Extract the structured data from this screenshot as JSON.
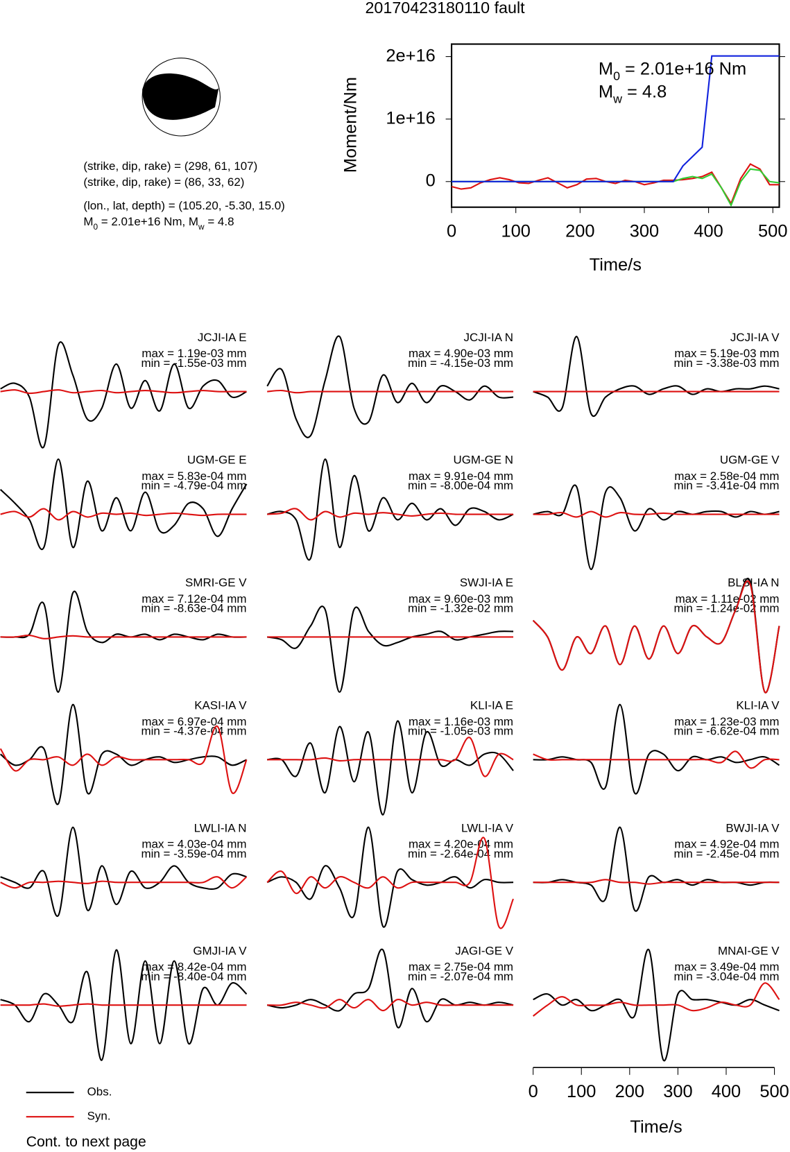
{
  "title": "20170423180110 fault",
  "focal": {
    "lines": [
      "(strike, dip, rake) = (298, 61, 107)",
      "(strike, dip, rake) = (86, 33, 62)",
      "(lon., lat, depth) = (105.20, -5.30, 15.0)"
    ],
    "moment_line": [
      "M",
      "0",
      " = 2.01e+16 Nm, M",
      "w",
      " = 4.8"
    ]
  },
  "chart_data": [
    {
      "type": "line",
      "ylabel": "Moment/Nm",
      "xlabel": "Time/s",
      "annotations": [
        [
          "M",
          "0",
          " = 2.01e+16 Nm"
        ],
        [
          "M",
          "w",
          " = 4.8"
        ]
      ],
      "xlim": [
        0,
        510
      ],
      "xticks": [
        0,
        100,
        200,
        300,
        400,
        500
      ],
      "ylim": [
        -4100000000000000.0,
        2.2e+16
      ],
      "yticks": [
        {
          "value": 0,
          "label": "0"
        },
        {
          "value": 1e+16,
          "label": "1e+16"
        },
        {
          "value": 2e+16,
          "label": "2e+16"
        }
      ],
      "x": [
        0,
        15,
        30,
        45,
        60,
        75,
        90,
        105,
        120,
        135,
        150,
        165,
        180,
        195,
        210,
        225,
        240,
        255,
        270,
        285,
        300,
        315,
        330,
        345,
        360,
        375,
        390,
        405,
        420,
        435,
        450,
        465,
        480,
        495,
        510
      ],
      "series": [
        {
          "color": "#dd1111",
          "values": [
            -800000000000000.0,
            -1200000000000000.0,
            -1000000000000000.0,
            -200000000000000.0,
            300000000000000.0,
            600000000000000.0,
            300000000000000.0,
            -200000000000000.0,
            -300000000000000.0,
            200000000000000.0,
            600000000000000.0,
            -200000000000000.0,
            -1000000000000000.0,
            -500000000000000.0,
            400000000000000.0,
            500000000000000.0,
            0,
            -300000000000000.0,
            200000000000000.0,
            0,
            -500000000000000.0,
            -200000000000000.0,
            200000000000000.0,
            200000000000000.0,
            300000000000000.0,
            500000000000000.0,
            800000000000000.0,
            1500000000000000.0,
            -1000000000000000.0,
            -3500000000000000.0,
            500000000000000.0,
            2800000000000000.0,
            2000000000000000.0,
            -500000000000000.0,
            -500000000000000.0
          ]
        },
        {
          "color": "#33cc33",
          "values": [
            0,
            0,
            0,
            0,
            0,
            0,
            0,
            0,
            0,
            0,
            0,
            0,
            0,
            0,
            0,
            0,
            0,
            0,
            0,
            0,
            0,
            0,
            0,
            0,
            500000000000000.0,
            800000000000000.0,
            500000000000000.0,
            1200000000000000.0,
            -1000000000000000.0,
            -3800000000000000.0,
            0,
            2000000000000000.0,
            1800000000000000.0,
            0,
            -200000000000000.0
          ]
        },
        {
          "color": "#1122dd",
          "values": [
            0,
            0,
            0,
            0,
            0,
            0,
            0,
            0,
            0,
            0,
            0,
            0,
            0,
            0,
            0,
            0,
            0,
            0,
            0,
            0,
            0,
            0,
            0,
            0,
            2500000000000000.0,
            4000000000000000.0,
            5500000000000000.0,
            2.01e+16,
            2.01e+16,
            2.01e+16,
            2.01e+16,
            2.01e+16,
            2.01e+16,
            2.01e+16,
            2.01e+16
          ]
        }
      ]
    },
    {
      "type": "waveform",
      "xlabel": "Time/s",
      "xlim": [
        0,
        510
      ],
      "xticks": [
        0,
        100,
        200,
        300,
        400,
        500
      ],
      "ylim": [
        -1,
        1
      ],
      "x": [
        0,
        30,
        60,
        90,
        120,
        150,
        180,
        210,
        240,
        270,
        300,
        330,
        360,
        390,
        420,
        450,
        480,
        510
      ],
      "series": [
        {
          "name": "Obs.",
          "color": "#000000"
        },
        {
          "name": "Syn.",
          "color": "#dd1111"
        }
      ],
      "panels": [
        {
          "name": "JCJI-IA E",
          "max": "max = 1.19e-03 mm",
          "min": "min = -1.55e-03 mm",
          "obs": [
            0.05,
            0.15,
            -0.1,
            -1,
            0.85,
            0.3,
            -0.5,
            -0.3,
            0.5,
            -0.3,
            0.2,
            -0.35,
            0.5,
            -0.3,
            0.1,
            0.2,
            -0.1,
            0
          ],
          "syn": [
            0,
            0.03,
            -0.03,
            0,
            0.03,
            -0.02,
            0,
            0.02,
            -0.02,
            0,
            0.02,
            0,
            -0.02,
            0,
            0.02,
            0,
            0,
            0
          ]
        },
        {
          "name": "JCJI-IA N",
          "max": "max = 4.90e-03 mm",
          "min": "min = -4.15e-03 mm",
          "obs": [
            0.1,
            0.4,
            -0.5,
            -0.8,
            0.2,
            1,
            -0.3,
            -0.55,
            0.3,
            -0.2,
            0.15,
            -0.2,
            0.1,
            0,
            -0.15,
            0.1,
            -0.1,
            -0.1
          ],
          "syn": [
            0,
            0.02,
            -0.02,
            0,
            0,
            0,
            0,
            0,
            0,
            0,
            0,
            0,
            0,
            0,
            0,
            0,
            0,
            0
          ]
        },
        {
          "name": "JCJI-IA V",
          "max": "max = 5.19e-03 mm",
          "min": "min = -3.38e-03 mm",
          "obs": [
            0,
            -0.1,
            -0.3,
            1,
            -0.4,
            -0.1,
            0.05,
            0.1,
            -0.05,
            0.05,
            0.1,
            -0.05,
            0.05,
            0,
            0.05,
            0.05,
            0.1,
            0.05
          ],
          "syn": [
            0,
            0,
            0,
            0,
            0,
            0,
            0,
            0,
            0,
            0,
            0,
            0,
            0,
            0,
            0,
            0,
            0,
            0
          ]
        },
        {
          "name": "UGM-GE E",
          "max": "max = 5.83e-04 mm",
          "min": "min = -4.79e-04 mm",
          "obs": [
            0.45,
            0.2,
            -0.1,
            -0.6,
            1,
            -0.6,
            0.6,
            -0.3,
            0.3,
            -0.3,
            0.4,
            -0.3,
            -0.2,
            0.2,
            0.1,
            -0.4,
            0.1,
            0.55
          ],
          "syn": [
            0,
            0.05,
            -0.05,
            0.1,
            -0.1,
            0.05,
            -0.05,
            0.02,
            0,
            0.02,
            -0.02,
            0,
            0.02,
            0,
            -0.02,
            0,
            0,
            0
          ]
        },
        {
          "name": "UGM-GE N",
          "max": "max = 9.91e-04 mm",
          "min": "min = -8.00e-04 mm",
          "obs": [
            0,
            0.05,
            -0.1,
            -0.8,
            1,
            -0.6,
            0.7,
            -0.3,
            0.3,
            -0.1,
            0.2,
            -0.1,
            0.1,
            -0.2,
            0.1,
            0.05,
            -0.1,
            0
          ],
          "syn": [
            0,
            0.02,
            0.1,
            -0.1,
            0.05,
            -0.05,
            0.02,
            0,
            0.03,
            0,
            -0.03,
            0,
            0.02,
            0,
            0,
            0,
            0,
            0
          ]
        },
        {
          "name": "UGM-GE V",
          "max": "max = 2.58e-04 mm",
          "min": "min = -3.41e-04 mm",
          "obs": [
            0,
            0.05,
            0,
            0.5,
            -1,
            0.4,
            0.3,
            -0.3,
            0.1,
            -0.1,
            0.05,
            0,
            0.05,
            0.05,
            -0.05,
            0.05,
            0,
            0.05
          ],
          "syn": [
            0,
            0,
            0.03,
            -0.05,
            0.05,
            -0.05,
            0.03,
            0,
            0,
            0.02,
            0,
            0,
            0,
            0,
            0,
            0,
            0,
            0
          ]
        },
        {
          "name": "SMRI-GE V",
          "max": "max = 7.12e-04 mm",
          "min": "min = -8.63e-04 mm",
          "obs": [
            0,
            0,
            0.05,
            0.6,
            -1,
            0.8,
            0.1,
            -0.1,
            0.05,
            0,
            0.05,
            -0.05,
            0.05,
            0,
            -0.05,
            0.05,
            0,
            0
          ],
          "syn": [
            0,
            0,
            0.03,
            -0.03,
            0,
            0.02,
            0,
            0,
            0,
            0,
            0,
            0,
            0,
            0,
            0,
            0,
            0,
            0
          ]
        },
        {
          "name": "SWJI-IA E",
          "max": "max = 9.60e-03 mm",
          "min": "min = -1.32e-02 mm",
          "obs": [
            0,
            -0.05,
            -0.2,
            0.2,
            0.5,
            -1,
            0.5,
            0.1,
            -0.15,
            -0.1,
            0,
            0.05,
            0.1,
            -0.05,
            0,
            0.05,
            0.1,
            0.1
          ],
          "syn": [
            0,
            0,
            0,
            0,
            0,
            0,
            0,
            0,
            0,
            0,
            0,
            0,
            0,
            0,
            0,
            0,
            0,
            0
          ]
        },
        {
          "name": "BLSI-IA N",
          "max": "max = 1.11e-02 mm",
          "min": "min = -1.24e-02 mm",
          "obs": [
            0.3,
            0,
            -0.6,
            0,
            -0.3,
            0.2,
            -0.5,
            0.2,
            -0.4,
            0.2,
            -0.3,
            0.2,
            0,
            -0.1,
            0.5,
            1,
            -1,
            0.2
          ],
          "syn": [
            0.3,
            0,
            -0.6,
            0,
            -0.3,
            0.2,
            -0.5,
            0.2,
            -0.4,
            0.2,
            -0.3,
            0.2,
            0,
            -0.1,
            0.5,
            0.95,
            -1,
            0.2
          ]
        },
        {
          "name": "KASI-IA V",
          "max": "max = 6.97e-04 mm",
          "min": "min = -4.37e-04 mm",
          "obs": [
            0.1,
            -0.1,
            0,
            0.2,
            -0.8,
            1,
            -0.6,
            0.1,
            0.1,
            -0.1,
            0,
            0.05,
            -0.05,
            0,
            0.05,
            0.05,
            -0.1,
            0
          ],
          "syn": [
            0.2,
            -0.2,
            0,
            0,
            0.05,
            -0.1,
            0.1,
            -0.1,
            0.05,
            0,
            0,
            0,
            0,
            0,
            -0.05,
            0.6,
            -0.6,
            0
          ]
        },
        {
          "name": "KLI-IA E",
          "max": "max = 1.16e-03 mm",
          "min": "min = -1.05e-03 mm",
          "obs": [
            0,
            0,
            -0.3,
            0.3,
            -0.6,
            0.6,
            -0.4,
            0.5,
            -1,
            0.7,
            -0.6,
            0.5,
            -0.1,
            0,
            -0.1,
            0.1,
            0.1,
            -0.2
          ],
          "syn": [
            0,
            0,
            0,
            0,
            0.03,
            -0.02,
            0,
            0,
            0,
            0,
            0,
            0,
            0,
            0,
            0.4,
            -0.3,
            0.1,
            0
          ]
        },
        {
          "name": "KLI-IA V",
          "max": "max = 1.23e-03 mm",
          "min": "min = -6.62e-04 mm",
          "obs": [
            0,
            0,
            0.05,
            0,
            -0.05,
            -0.5,
            1,
            -0.6,
            0.1,
            0.1,
            -0.2,
            0.05,
            0,
            0.05,
            -0.05,
            0,
            0.05,
            -0.1
          ],
          "syn": [
            0.1,
            0,
            0,
            0,
            0,
            0,
            0,
            0,
            0,
            0,
            0,
            0,
            0,
            -0.05,
            0.15,
            -0.15,
            0,
            0
          ]
        },
        {
          "name": "LWLI-IA N",
          "max": "max = 4.03e-04 mm",
          "min": "min = -3.59e-04 mm",
          "obs": [
            0.1,
            0,
            -0.1,
            0.2,
            -0.6,
            1,
            -0.5,
            0.3,
            -0.4,
            0.2,
            -0.1,
            0,
            0.3,
            0,
            -0.1,
            -0.1,
            0.15,
            0.1
          ],
          "syn": [
            0,
            -0.1,
            0,
            0,
            0.02,
            0,
            -0.02,
            0.02,
            0,
            0,
            0,
            0,
            0,
            0,
            0,
            0.1,
            -0.1,
            0.1
          ]
        },
        {
          "name": "LWLI-IA V",
          "max": "max = 4.20e-04 mm",
          "min": "min = -2.64e-04 mm",
          "obs": [
            0,
            0.1,
            0,
            -0.3,
            0.3,
            -0.1,
            -0.6,
            1,
            -0.8,
            0.2,
            0.05,
            -0.05,
            0,
            0.1,
            -0.1,
            0.05,
            0,
            0
          ],
          "syn": [
            0,
            0.2,
            -0.2,
            0.1,
            -0.1,
            0.1,
            0,
            -0.1,
            0.1,
            -0.1,
            0,
            0,
            0,
            0,
            0,
            0.8,
            -0.8,
            -0.3
          ]
        },
        {
          "name": "BWJI-IA V",
          "max": "max = 4.92e-04 mm",
          "min": "min = -2.45e-04 mm",
          "obs": [
            0,
            0,
            0.05,
            0,
            -0.05,
            -0.3,
            1,
            -0.5,
            0.1,
            0,
            0.05,
            -0.05,
            0.05,
            0,
            0,
            -0.05,
            0,
            0
          ],
          "syn": [
            0,
            0,
            0,
            0,
            0,
            0.05,
            0,
            0,
            -0.03,
            0,
            0,
            0,
            0,
            0,
            0,
            0,
            0,
            0
          ]
        },
        {
          "name": "GMJI-IA V",
          "max": "max = 8.42e-04 mm",
          "min": "min = -8.40e-04 mm",
          "obs": [
            0.1,
            0,
            -0.3,
            0.2,
            0,
            -0.3,
            0.6,
            -1,
            1,
            -0.7,
            0.8,
            -0.7,
            0.8,
            -0.7,
            0.3,
            0,
            0.4,
            0.2
          ],
          "syn": [
            0,
            0,
            0,
            0.02,
            -0.02,
            0,
            0.02,
            0,
            0,
            0,
            0,
            0,
            0,
            0,
            0,
            0,
            0,
            0
          ]
        },
        {
          "name": "JAGI-GE V",
          "max": "max = 2.75e-04 mm",
          "min": "min = -2.07e-04 mm",
          "obs": [
            0,
            -0.05,
            0,
            0.1,
            0,
            -0.1,
            0.2,
            0.3,
            1,
            -0.4,
            0.3,
            -0.3,
            0.1,
            0,
            0.05,
            0,
            0.05,
            0
          ],
          "syn": [
            0,
            0,
            0.05,
            0,
            -0.05,
            0.1,
            -0.05,
            0.1,
            -0.1,
            0.1,
            0,
            0.05,
            0,
            0,
            0,
            0,
            0,
            0
          ]
        },
        {
          "name": "MNAI-GE V",
          "max": "max = 3.49e-04 mm",
          "min": "min = -3.04e-04 mm",
          "obs": [
            0.1,
            0.2,
            0,
            0.1,
            -0.1,
            0,
            0.1,
            -0.2,
            1,
            -1,
            0.2,
            0.1,
            0.1,
            0.05,
            0,
            0.1,
            0,
            -0.1
          ],
          "syn": [
            -0.2,
            0,
            0.15,
            0,
            0,
            0,
            0.05,
            0,
            0,
            0,
            0,
            -0.1,
            -0.05,
            0.05,
            0,
            0,
            0.4,
            0.1
          ]
        }
      ]
    }
  ],
  "footer": "Cont. to next page"
}
